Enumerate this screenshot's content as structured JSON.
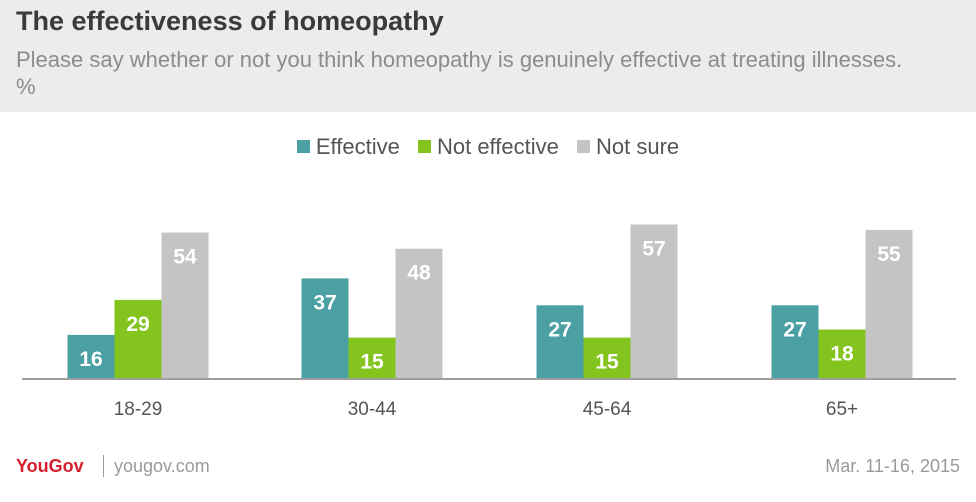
{
  "header": {
    "title": "The effectiveness of homeopathy",
    "subtitle": "Please say whether or not you think homeopathy is genuinely effective at treating illnesses. %"
  },
  "colors": {
    "effective": "#4aa0a3",
    "not_effective": "#84c41f",
    "not_sure": "#c4c4c4",
    "label": "#ffffff",
    "brand": "#d61f2e"
  },
  "chart_data": {
    "type": "bar",
    "categories": [
      "18-29",
      "30-44",
      "45-64",
      "65+"
    ],
    "series": [
      {
        "name": "Effective",
        "values": [
          16,
          37,
          27,
          27
        ]
      },
      {
        "name": "Not effective",
        "values": [
          29,
          15,
          15,
          18
        ]
      },
      {
        "name": "Not sure",
        "values": [
          54,
          48,
          57,
          55
        ]
      }
    ],
    "ylim": [
      0,
      70
    ],
    "grid": false,
    "legend_position": "top-center",
    "data_labels": true
  },
  "footer": {
    "brand": "YouGov",
    "url": "yougov.com",
    "date": "Mar. 11-16, 2015"
  }
}
